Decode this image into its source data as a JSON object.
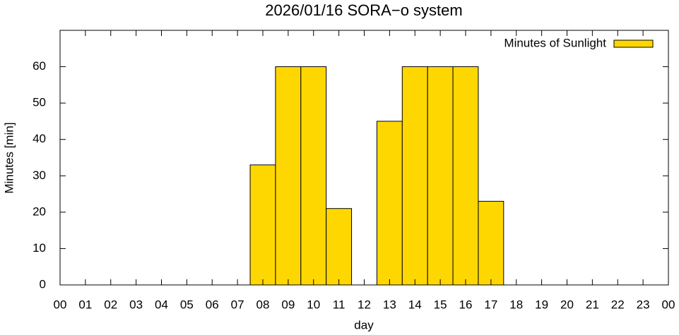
{
  "chart_data": {
    "type": "bar",
    "title": "2026/01/16 SORA−o system",
    "x_label": "day",
    "y_label": "Minutes [min]",
    "x": [
      8,
      9,
      10,
      11,
      13,
      14,
      15,
      16,
      17
    ],
    "series": [
      {
        "name": "Minutes of Sunlight",
        "color": "#ffd700",
        "values": [
          33,
          60,
          60,
          21,
          45,
          60,
          60,
          60,
          23
        ]
      }
    ],
    "xlim": [
      0,
      24
    ],
    "xticks": [
      {
        "value": 0,
        "label": "00"
      },
      {
        "value": 1,
        "label": "01"
      },
      {
        "value": 2,
        "label": "02"
      },
      {
        "value": 3,
        "label": "03"
      },
      {
        "value": 4,
        "label": "04"
      },
      {
        "value": 5,
        "label": "05"
      },
      {
        "value": 6,
        "label": "06"
      },
      {
        "value": 7,
        "label": "07"
      },
      {
        "value": 8,
        "label": "08"
      },
      {
        "value": 9,
        "label": "09"
      },
      {
        "value": 10,
        "label": "10"
      },
      {
        "value": 11,
        "label": "11"
      },
      {
        "value": 12,
        "label": "12"
      },
      {
        "value": 13,
        "label": "13"
      },
      {
        "value": 14,
        "label": "14"
      },
      {
        "value": 15,
        "label": "15"
      },
      {
        "value": 16,
        "label": "16"
      },
      {
        "value": 17,
        "label": "17"
      },
      {
        "value": 18,
        "label": "18"
      },
      {
        "value": 19,
        "label": "19"
      },
      {
        "value": 20,
        "label": "20"
      },
      {
        "value": 21,
        "label": "21"
      },
      {
        "value": 22,
        "label": "22"
      },
      {
        "value": 23,
        "label": "23"
      },
      {
        "value": 24,
        "label": "00"
      }
    ],
    "ylim": [
      0,
      70
    ],
    "yticks": [
      0,
      10,
      20,
      30,
      40,
      50,
      60
    ],
    "legend": "top-right",
    "grid": false
  }
}
